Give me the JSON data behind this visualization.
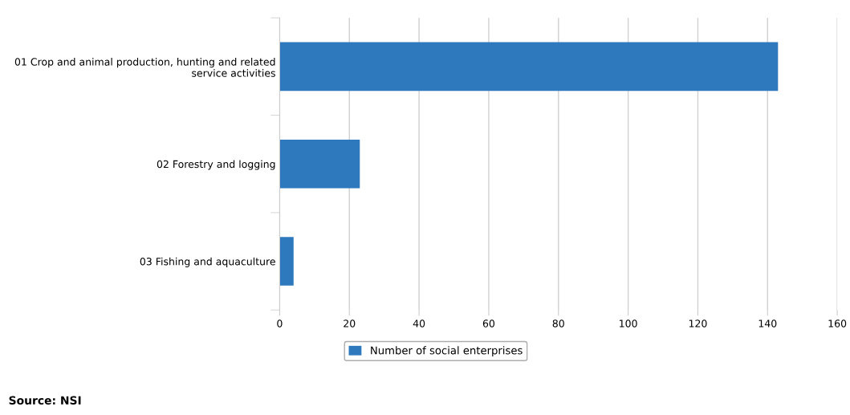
{
  "chart_data": {
    "type": "bar",
    "orientation": "horizontal",
    "categories": [
      "01 Crop and animal production, hunting and related\nservice activities",
      "02 Forestry and logging",
      "03 Fishing and aquaculture"
    ],
    "series": [
      {
        "name": "Number of social enterprises",
        "color": "#2e78bd",
        "values": [
          143,
          23,
          4
        ]
      }
    ],
    "xlim": [
      0,
      160
    ],
    "xticks": [
      0,
      20,
      40,
      60,
      80,
      100,
      120,
      140,
      160
    ],
    "grid": "x",
    "legend": "bottom",
    "annotations": [
      "Source: NSI"
    ]
  }
}
